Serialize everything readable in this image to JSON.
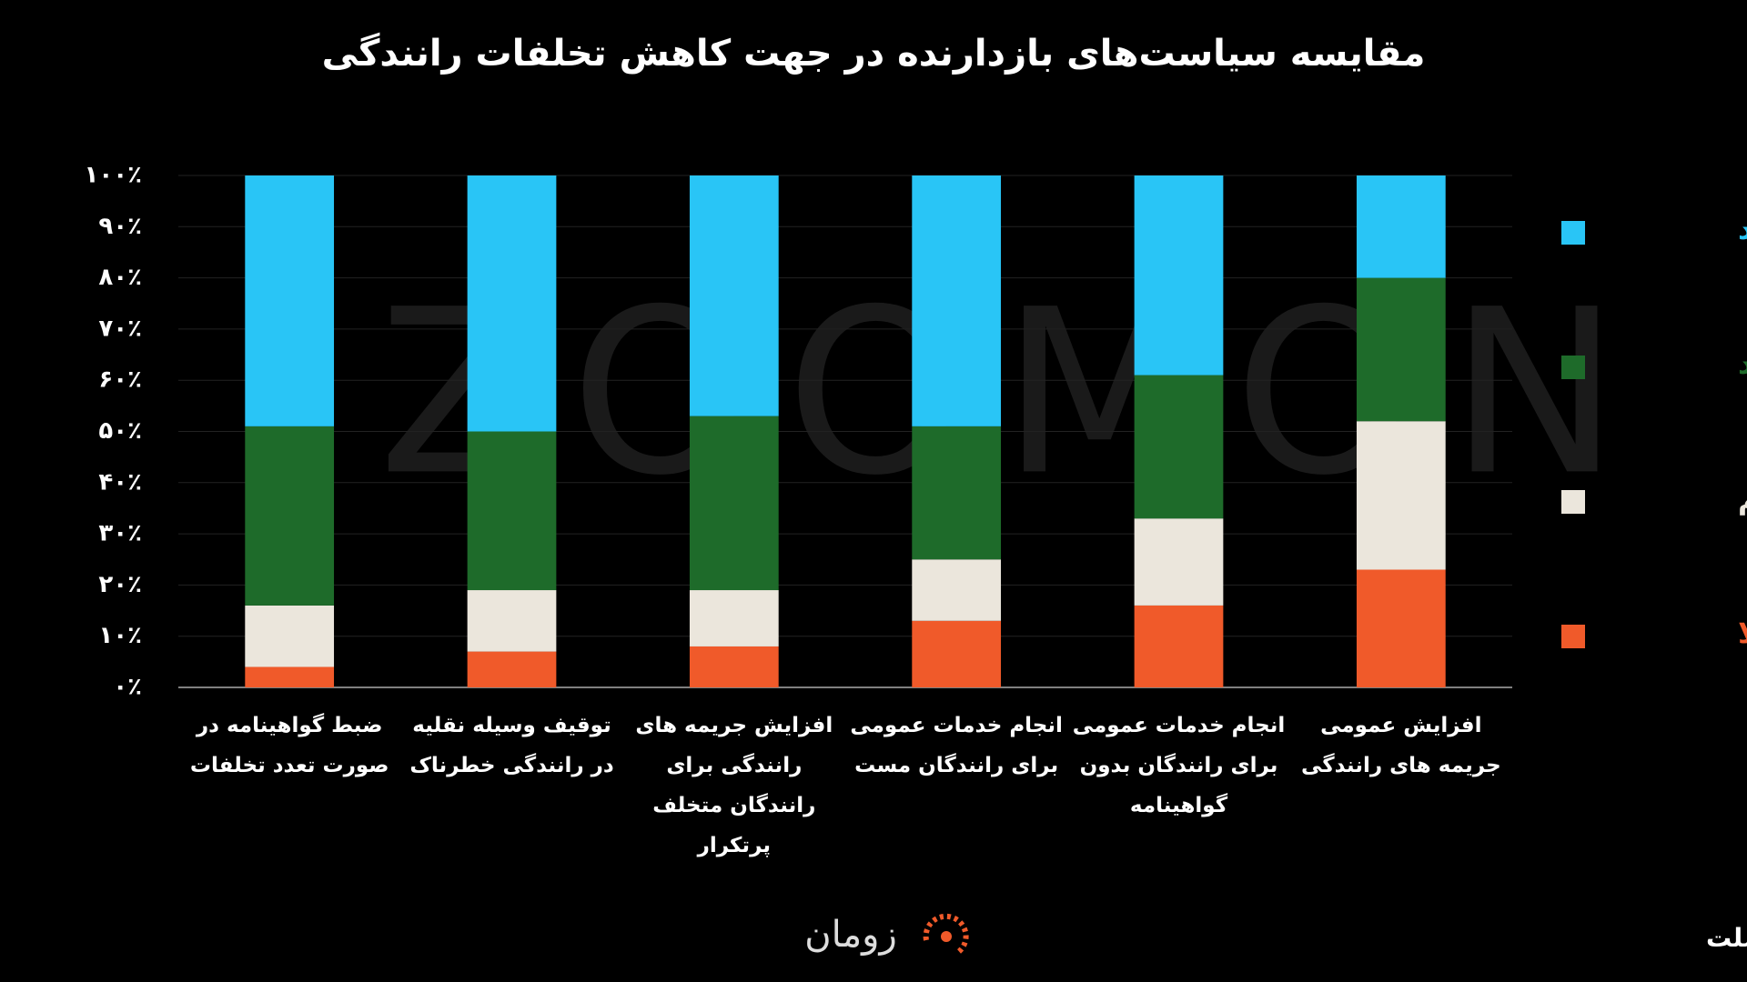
{
  "chart_data": {
    "type": "stacked_bar",
    "title": "مقایسه سیاست‌های بازدارنده در جهت کاهش تخلفات رانندگی",
    "watermark": "ZOOMON",
    "categories": [
      "ضبط گواهینامه در صورت تعدد تخلفات",
      "توقیف وسیله نقلیه در رانندگی خطرناک",
      "افزایش جریمه های رانندگی برای رانندگان متخلف پرتکرار",
      "انجام خدمات عمومی برای رانندگان مست",
      "انجام خدمات عمومی برای رانندگان بدون گواهینامه",
      "افزایش عمومی جریمه های رانندگی"
    ],
    "series": [
      {
        "name": "اصلا",
        "color": "#f05a2a",
        "values": [
          4,
          7,
          8,
          13,
          16,
          23
        ]
      },
      {
        "name": "کم",
        "color": "#ebe6dc",
        "values": [
          12,
          12,
          11,
          12,
          17,
          29
        ]
      },
      {
        "name": "زیاد",
        "color": "#1e6b2a",
        "values": [
          35,
          31,
          34,
          26,
          28,
          28
        ]
      },
      {
        "name": "خیلی زیاد",
        "color": "#29c5f6",
        "values": [
          49,
          50,
          47,
          49,
          39,
          20
        ]
      }
    ],
    "ylim": [
      0,
      100
    ],
    "yticks": [
      {
        "value": 0,
        "label": "۰٪"
      },
      {
        "value": 10,
        "label": "۱۰٪"
      },
      {
        "value": 20,
        "label": "۲۰٪"
      },
      {
        "value": 30,
        "label": "۳۰٪"
      },
      {
        "value": 40,
        "label": "۴۰٪"
      },
      {
        "value": 50,
        "label": "۵۰٪"
      },
      {
        "value": 60,
        "label": "۶۰٪"
      },
      {
        "value": 70,
        "label": "۷۰٪"
      },
      {
        "value": 80,
        "label": "۸۰٪"
      },
      {
        "value": 90,
        "label": "۹۰٪"
      },
      {
        "value": 100,
        "label": "۱۰۰٪"
      }
    ],
    "grid": true,
    "legend": "right",
    "source": "منبع: موسسه افکارسنجی ملت",
    "logo": "زومان"
  }
}
